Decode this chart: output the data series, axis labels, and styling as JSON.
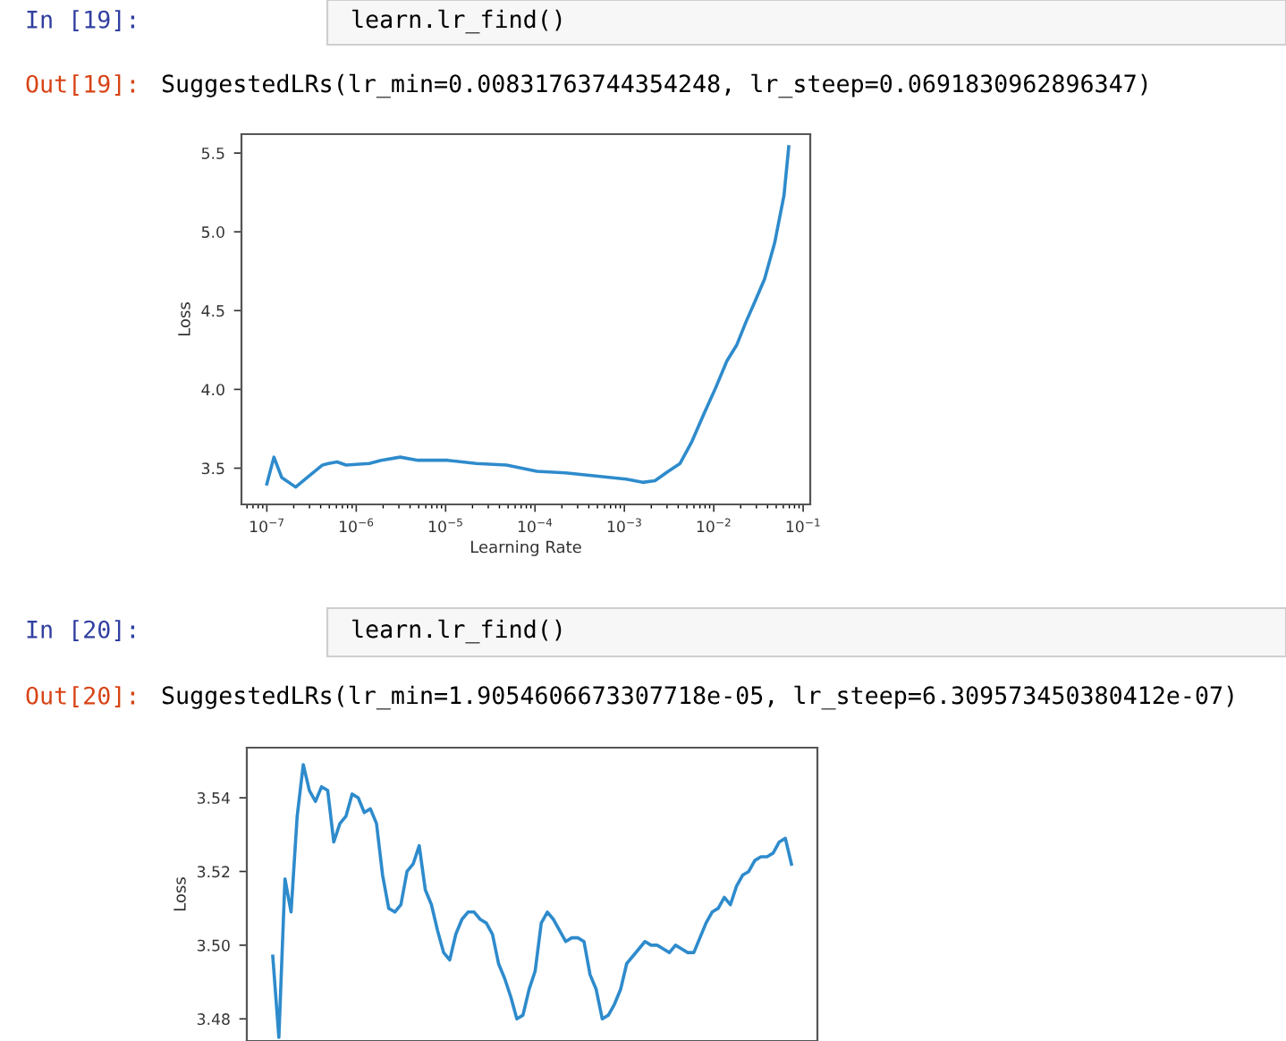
{
  "chart_data": [
    {
      "type": "line",
      "xlabel": "Learning Rate",
      "ylabel": "Loss",
      "annotations": [
        "In [19]:",
        "learn.lr_find()",
        "Out[19]:",
        "SuggestedLRs(lr_min=0.00831763744354248, lr_steep=0.0691830962896347)"
      ],
      "log": "x",
      "xlim": [
        5.2e-08,
        0.12
      ],
      "ylim": [
        3.27,
        5.62
      ],
      "xticks": [
        {
          "value": 1e-07,
          "label": "10$^{−7}$"
        },
        {
          "value": 1e-06,
          "label": "10$^{−6}$"
        },
        {
          "value": 1e-05,
          "label": "10$^{−5}$"
        },
        {
          "value": 0.0001,
          "label": "10$^{−4}$"
        },
        {
          "value": 0.001,
          "label": "10$^{−3}$"
        },
        {
          "value": 0.01,
          "label": "10$^{−2}$"
        },
        {
          "value": 0.1,
          "label": "10$^{−1}$"
        }
      ],
      "yticks": [
        3.5,
        {
          "value": 4.0,
          "label": "4.0"
        },
        4.5,
        {
          "value": 5.0,
          "label": "5.0"
        },
        5.5
      ],
      "grid": false,
      "legend": false,
      "marker": "none",
      "line_style": "solid",
      "series": [
        {
          "color": "#2e8bcc",
          "x": [
            1e-07,
            1.2e-07,
            1.47e-07,
            2.1e-07,
            3.1e-07,
            4.2e-07,
            4.9e-07,
            6.1e-07,
            7.7e-07,
            1.4e-06,
            1.9e-06,
            3.1e-06,
            4.9e-06,
            1.05e-05,
            2.2e-05,
            4.8e-05,
            0.000105,
            0.00022,
            0.00048,
            0.00105,
            0.0016,
            0.0022,
            0.0031,
            0.0042,
            0.0057,
            0.0077,
            0.0105,
            0.014,
            0.018,
            0.023,
            0.029,
            0.037,
            0.048,
            0.061,
            0.069
          ],
          "values": [
            3.4,
            3.57,
            3.44,
            3.38,
            3.46,
            3.52,
            3.53,
            3.54,
            3.52,
            3.53,
            3.55,
            3.57,
            3.55,
            3.55,
            3.53,
            3.52,
            3.48,
            3.47,
            3.45,
            3.43,
            3.41,
            3.42,
            3.48,
            3.53,
            3.67,
            3.84,
            4.01,
            4.18,
            4.28,
            4.43,
            4.56,
            4.7,
            4.93,
            5.23,
            5.54
          ]
        }
      ]
    },
    {
      "type": "line",
      "ylabel": "Loss",
      "annotations": [
        "In [20]:",
        "learn.lr_find()",
        "Out[20]:",
        "SuggestedLRs(lr_min=1.9054606673307718e-05, lr_steep=6.309573450380412e-07)"
      ],
      "ylim": [
        3.474,
        3.5536
      ],
      "yticks": [
        3.48,
        {
          "value": 3.5,
          "label": "3.50"
        },
        3.52,
        3.54
      ],
      "tick_labels": "y",
      "grid": false,
      "legend": false,
      "marker": "none",
      "line_style": "solid",
      "categories": [
        null,
        null,
        null,
        null,
        null,
        null,
        null,
        null,
        null,
        null,
        null,
        null,
        null,
        null,
        null,
        null,
        null,
        null,
        null,
        null,
        null,
        null,
        null,
        null,
        null,
        null,
        null,
        null,
        null,
        null,
        null,
        null,
        null,
        null,
        null,
        null,
        null,
        null,
        null,
        null,
        null,
        null,
        null,
        null,
        null,
        null,
        null,
        null,
        null,
        null,
        null,
        null,
        null,
        null,
        null,
        null,
        null,
        null,
        null,
        null,
        null,
        null,
        null,
        null,
        null,
        null,
        null,
        null,
        null,
        null,
        null,
        null,
        null,
        null,
        null,
        null,
        null,
        null,
        null,
        null,
        null,
        null,
        null,
        null,
        null,
        null
      ],
      "series": [
        {
          "color": "#2e8bcc",
          "values": [
            3.497,
            3.475,
            3.518,
            3.509,
            3.535,
            3.549,
            3.542,
            3.539,
            3.543,
            3.542,
            3.528,
            3.533,
            3.535,
            3.541,
            3.54,
            3.536,
            3.537,
            3.533,
            3.519,
            3.51,
            3.509,
            3.511,
            3.52,
            3.522,
            3.527,
            3.515,
            3.511,
            3.504,
            3.498,
            3.496,
            3.503,
            3.507,
            3.509,
            3.509,
            3.507,
            3.506,
            3.503,
            3.495,
            3.491,
            3.486,
            3.48,
            3.481,
            3.488,
            3.493,
            3.506,
            3.509,
            3.507,
            3.504,
            3.501,
            3.502,
            3.502,
            3.501,
            3.492,
            3.488,
            3.48,
            3.481,
            3.484,
            3.488,
            3.495,
            3.497,
            3.499,
            3.501,
            3.5,
            3.5,
            3.499,
            3.498,
            3.5,
            3.499,
            3.498,
            3.498,
            3.502,
            3.506,
            3.509,
            3.51,
            3.513,
            3.511,
            3.516,
            3.519,
            3.52,
            3.523,
            3.524,
            3.524,
            3.525,
            3.528,
            3.529,
            3.522
          ]
        }
      ]
    }
  ]
}
